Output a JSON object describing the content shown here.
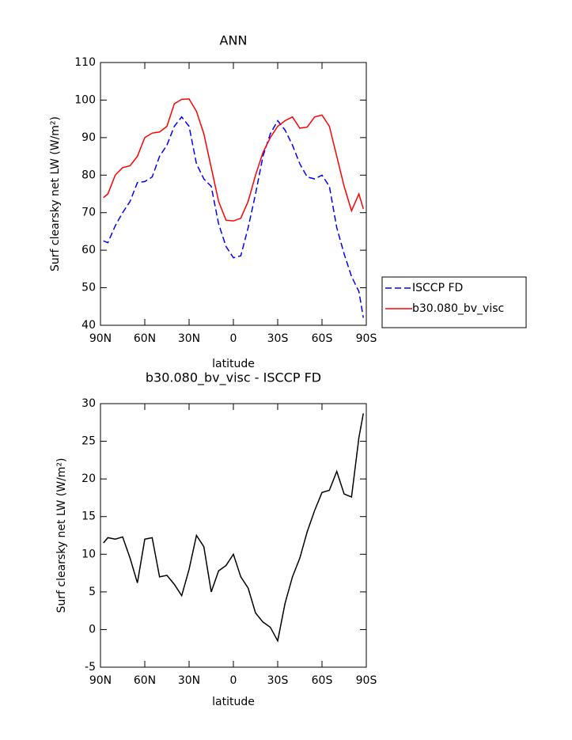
{
  "chart_data": [
    {
      "type": "line",
      "title": "ANN",
      "xlabel": "latitude",
      "ylabel": "Surf clearsky net LW (W/m²)",
      "x": [
        88,
        85,
        80,
        75,
        70,
        65,
        60,
        55,
        50,
        45,
        40,
        35,
        30,
        25,
        20,
        15,
        10,
        5,
        0,
        -5,
        -10,
        -15,
        -20,
        -25,
        -30,
        -35,
        -40,
        -45,
        -50,
        -55,
        -60,
        -65,
        -70,
        -75,
        -80,
        -85,
        -88
      ],
      "series": [
        {
          "name": "ISCCP FD",
          "color": "#0000ff",
          "linestyle": "dashed",
          "values": [
            62.5,
            62,
            66.5,
            70,
            73,
            78,
            78.3,
            79.5,
            85,
            88,
            93,
            95.5,
            93,
            83,
            79,
            77,
            67,
            61,
            58,
            58.5,
            66,
            75,
            85,
            91,
            94.5,
            92,
            88,
            83,
            79.5,
            79,
            80,
            77,
            66,
            59,
            53,
            49,
            42
          ]
        },
        {
          "name": "b30.080_bv_visc",
          "color": "#ff0000",
          "linestyle": "solid",
          "values": [
            74,
            75,
            80,
            82,
            82.5,
            85,
            90,
            91.2,
            91.5,
            93,
            99,
            100.2,
            100.3,
            97,
            91,
            82,
            73,
            68,
            67.8,
            68.5,
            73,
            80,
            86,
            90,
            93,
            94.5,
            95.5,
            92.5,
            92.8,
            95.5,
            96,
            93,
            85,
            77,
            70.5,
            75,
            71
          ]
        }
      ],
      "xlim": [
        90,
        -90
      ],
      "xticks": [
        {
          "value": 90,
          "label": "90N"
        },
        {
          "value": 60,
          "label": "60N"
        },
        {
          "value": 30,
          "label": "30N"
        },
        0,
        {
          "value": -30,
          "label": "30S"
        },
        {
          "value": -60,
          "label": "60S"
        },
        {
          "value": -90,
          "label": "90S"
        }
      ],
      "ylim": [
        40,
        110
      ],
      "yticks": [
        40,
        50,
        60,
        70,
        80,
        90,
        100,
        110
      ],
      "legend": "right"
    },
    {
      "type": "line",
      "title": "b30.080_bv_visc - ISCCP FD",
      "xlabel": "latitude",
      "ylabel": "Surf clearsky net LW (W/m²)",
      "x": [
        88,
        85,
        80,
        75,
        70,
        65,
        60,
        55,
        50,
        45,
        40,
        35,
        30,
        25,
        20,
        15,
        10,
        5,
        0,
        -5,
        -10,
        -15,
        -20,
        -25,
        -30,
        -35,
        -40,
        -45,
        -50,
        -55,
        -60,
        -65,
        -70,
        -75,
        -80,
        -85,
        -88
      ],
      "values": [
        11.5,
        12.2,
        12,
        12.3,
        9.5,
        6.2,
        12,
        12.2,
        7,
        7.2,
        6,
        4.5,
        8,
        12.5,
        11,
        5,
        7.8,
        8.5,
        10,
        7,
        5.5,
        2.2,
        1,
        0.3,
        -1.5,
        3.5,
        7,
        9.5,
        13,
        15.8,
        18.2,
        18.5,
        21,
        18,
        17.6,
        25.5,
        28.7
      ],
      "color": "#000000",
      "linestyle": "solid",
      "xlim": [
        90,
        -90
      ],
      "xticks": [
        {
          "value": 90,
          "label": "90N"
        },
        {
          "value": 60,
          "label": "60N"
        },
        {
          "value": 30,
          "label": "30N"
        },
        0,
        {
          "value": -30,
          "label": "30S"
        },
        {
          "value": -60,
          "label": "60S"
        },
        {
          "value": -90,
          "label": "90S"
        }
      ],
      "ylim": [
        -5,
        30
      ],
      "yticks": [
        -5,
        0,
        5,
        10,
        15,
        20,
        25,
        30
      ]
    }
  ]
}
